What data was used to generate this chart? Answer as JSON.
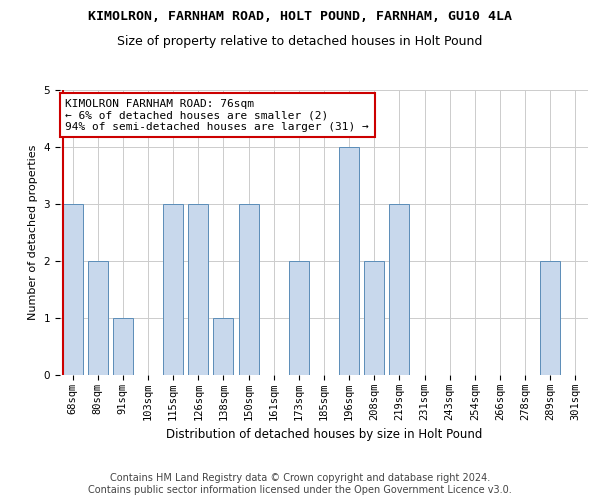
{
  "title_line1": "KIMOLRON, FARNHAM ROAD, HOLT POUND, FARNHAM, GU10 4LA",
  "title_line2": "Size of property relative to detached houses in Holt Pound",
  "xlabel": "Distribution of detached houses by size in Holt Pound",
  "ylabel": "Number of detached properties",
  "categories": [
    "68sqm",
    "80sqm",
    "91sqm",
    "103sqm",
    "115sqm",
    "126sqm",
    "138sqm",
    "150sqm",
    "161sqm",
    "173sqm",
    "185sqm",
    "196sqm",
    "208sqm",
    "219sqm",
    "231sqm",
    "243sqm",
    "254sqm",
    "266sqm",
    "278sqm",
    "289sqm",
    "301sqm"
  ],
  "values": [
    3,
    2,
    1,
    0,
    3,
    3,
    1,
    3,
    0,
    2,
    0,
    4,
    2,
    3,
    0,
    0,
    0,
    0,
    0,
    2,
    0
  ],
  "bar_color": "#c8d8ec",
  "bar_edge_color": "#5b8db8",
  "highlight_line_color": "#cc0000",
  "ylim": [
    0,
    5
  ],
  "yticks": [
    0,
    1,
    2,
    3,
    4,
    5
  ],
  "annotation_title": "KIMOLRON FARNHAM ROAD: 76sqm",
  "annotation_line2": "← 6% of detached houses are smaller (2)",
  "annotation_line3": "94% of semi-detached houses are larger (31) →",
  "annotation_box_color": "#ffffff",
  "annotation_box_edge_color": "#cc0000",
  "footer_line1": "Contains HM Land Registry data © Crown copyright and database right 2024.",
  "footer_line2": "Contains public sector information licensed under the Open Government Licence v3.0.",
  "background_color": "#ffffff",
  "grid_color": "#cccccc",
  "title_fontsize": 9.5,
  "subtitle_fontsize": 9,
  "ylabel_fontsize": 8,
  "xlabel_fontsize": 8.5,
  "tick_fontsize": 7.5,
  "annotation_fontsize": 8,
  "footer_fontsize": 7
}
